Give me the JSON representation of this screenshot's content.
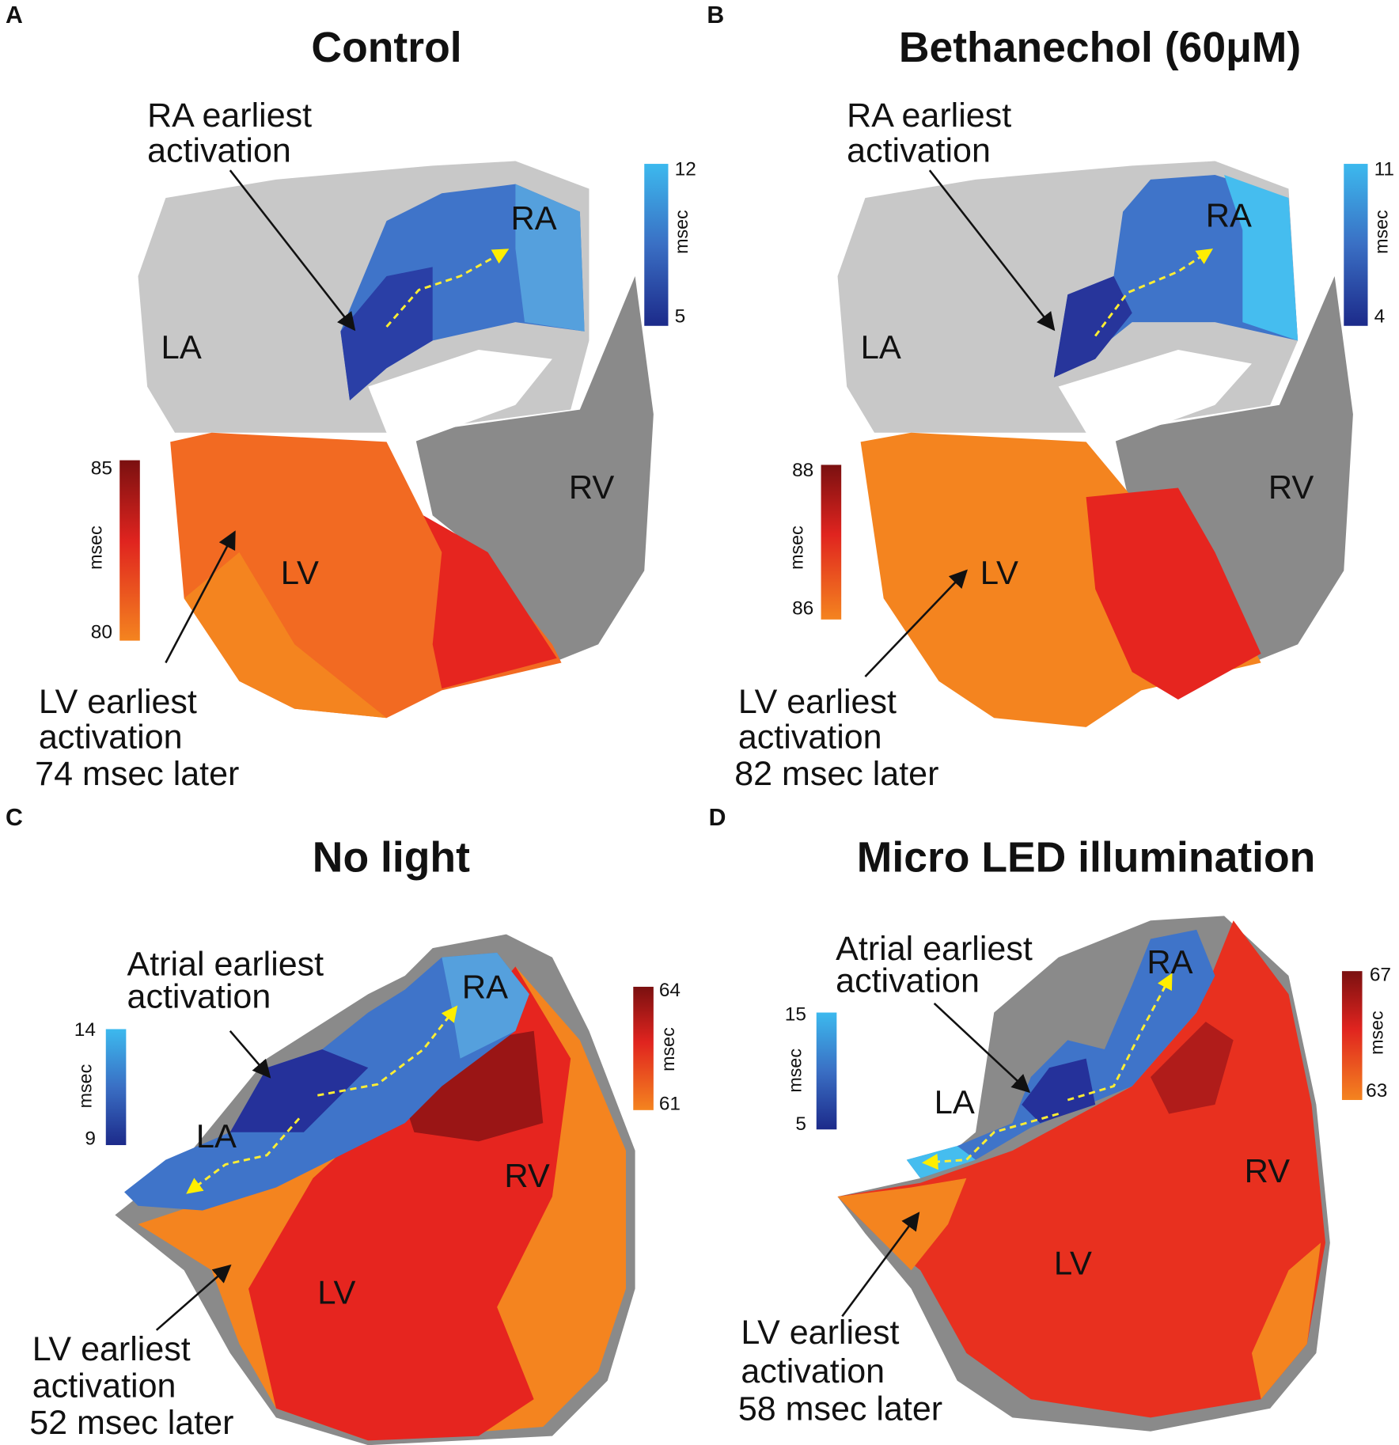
{
  "panels": [
    {
      "letter": "A",
      "title": "Control",
      "regions": [
        "RA",
        "LA",
        "RV",
        "LV"
      ],
      "atrial_note": [
        "RA earliest",
        "activation"
      ],
      "lv_note": [
        "LV earliest",
        "activation",
        "74 msec later"
      ],
      "atrial_scale": {
        "max": 12,
        "min": 5,
        "unit": "msec"
      },
      "ventricular_scale": {
        "max": 85,
        "min": 80,
        "unit": "msec"
      }
    },
    {
      "letter": "B",
      "title": "Bethanechol (60μM)",
      "regions": [
        "RA",
        "LA",
        "RV",
        "LV"
      ],
      "atrial_note": [
        "RA earliest",
        "activation"
      ],
      "lv_note": [
        "LV earliest",
        "activation",
        "82 msec later"
      ],
      "atrial_scale": {
        "max": 11,
        "min": 4,
        "unit": "msec"
      },
      "ventricular_scale": {
        "max": 88,
        "min": 86,
        "unit": "msec"
      }
    },
    {
      "letter": "C",
      "title": "No light",
      "regions": [
        "RA",
        "LA",
        "RV",
        "LV"
      ],
      "atrial_note": [
        "Atrial earliest",
        "activation"
      ],
      "lv_note": [
        "LV earliest",
        "activation",
        "52 msec later"
      ],
      "atrial_scale": {
        "max": 14,
        "min": 9,
        "unit": "msec"
      },
      "ventricular_scale": {
        "max": 64,
        "min": 61,
        "unit": "msec"
      }
    },
    {
      "letter": "D",
      "title": "Micro LED illumination",
      "regions": [
        "RA",
        "LA",
        "RV",
        "LV"
      ],
      "atrial_note": [
        "Atrial earliest",
        "activation"
      ],
      "lv_note": [
        "LV earliest",
        "activation",
        "58 msec later"
      ],
      "atrial_scale": {
        "max": 15,
        "min": 5,
        "unit": "msec"
      },
      "ventricular_scale": {
        "max": 67,
        "min": 63,
        "unit": "msec"
      }
    }
  ]
}
